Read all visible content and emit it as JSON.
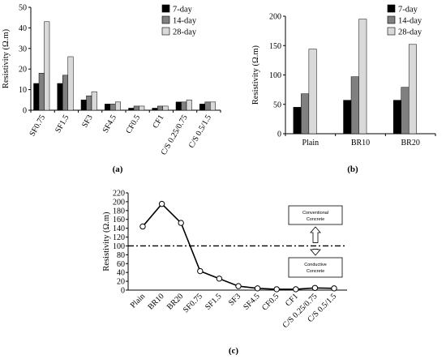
{
  "colors": {
    "s7": "#000000",
    "s14": "#808080",
    "s28": "#d9d9d9"
  },
  "chart_data": [
    {
      "type": "bar",
      "caption": "(a)",
      "ylabel": "Resistivity (Ω.m)",
      "ylim": [
        0,
        50
      ],
      "yticks": [
        0,
        10,
        20,
        30,
        40,
        50
      ],
      "categories": [
        "SF0.75",
        "SF1.5",
        "SF3",
        "SF4.5",
        "CF0.5",
        "CF1",
        "C/S 0.25/0.75",
        "C/S 0.5/1.5"
      ],
      "series": [
        {
          "name": "7-day",
          "values": [
            13,
            13,
            5,
            3,
            1,
            1,
            4,
            3
          ]
        },
        {
          "name": "14-day",
          "values": [
            18,
            17,
            7,
            3,
            2,
            2,
            4,
            4
          ]
        },
        {
          "name": "28-day",
          "values": [
            43,
            26,
            9,
            4,
            2,
            2,
            5,
            4
          ]
        }
      ],
      "legend": "top-right",
      "grid": false
    },
    {
      "type": "bar",
      "caption": "(b)",
      "ylabel": "Resistivity (Ω.m)",
      "ylim": [
        0,
        200
      ],
      "yticks": [
        0,
        50,
        100,
        150,
        200
      ],
      "categories": [
        "Plain",
        "BR10",
        "BR20"
      ],
      "series": [
        {
          "name": "7-day",
          "values": [
            45,
            57,
            57
          ]
        },
        {
          "name": "14-day",
          "values": [
            68,
            97,
            79
          ]
        },
        {
          "name": "28-day",
          "values": [
            144,
            195,
            152
          ]
        }
      ],
      "legend": "top-right",
      "grid": false
    },
    {
      "type": "line",
      "caption": "(c)",
      "ylabel": "Resistivity (Ω.m)",
      "ylim": [
        0,
        220
      ],
      "yticks": [
        0,
        20,
        40,
        60,
        80,
        100,
        120,
        140,
        160,
        180,
        200,
        220
      ],
      "categories": [
        "Plain",
        "BR10",
        "BR20",
        "SF0.75",
        "SF1.5",
        "SF3",
        "SF4.5",
        "CF0.5",
        "CF1",
        "C/S 0.25/0.75",
        "C/S 0.5/1.5"
      ],
      "values": [
        144,
        195,
        152,
        43,
        26,
        9,
        4,
        2,
        2,
        5,
        4
      ],
      "reference_line": 100,
      "annotations": [
        "Conventional Concrete",
        "Conductive Concrete"
      ],
      "grid": false
    }
  ]
}
